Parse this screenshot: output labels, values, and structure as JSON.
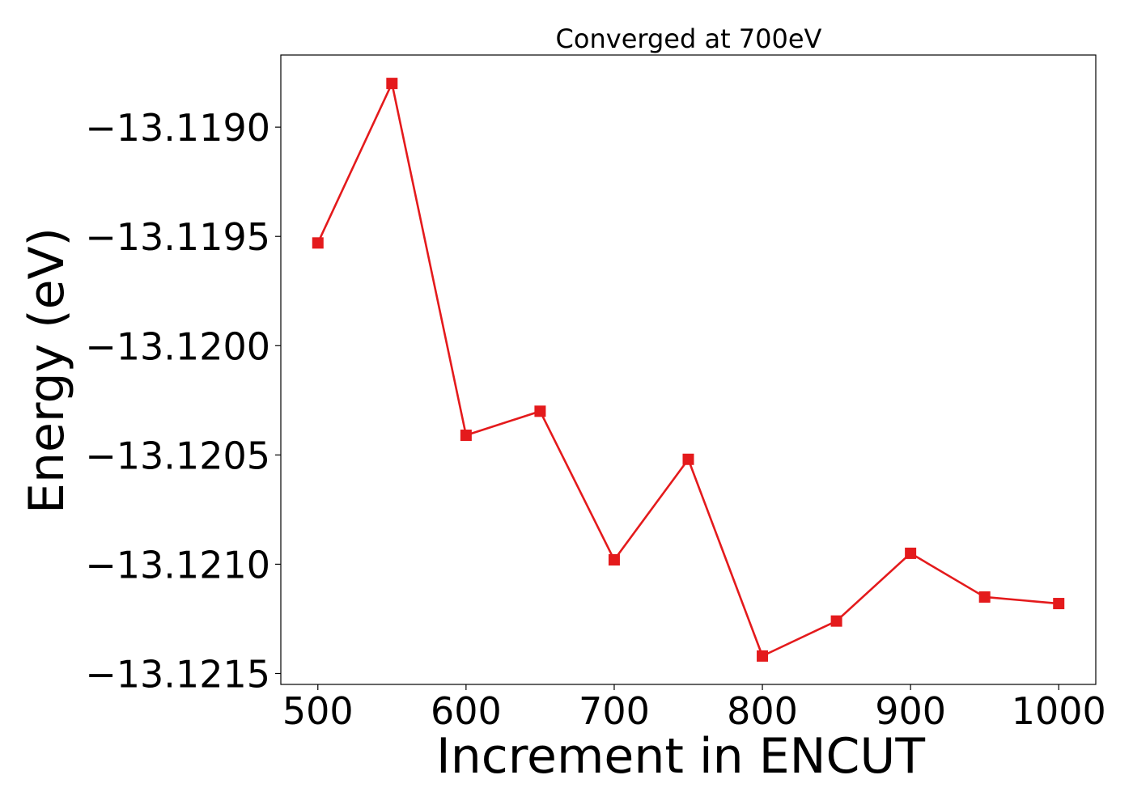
{
  "chart_data": {
    "type": "line",
    "title": "Converged at 700eV",
    "xlabel": "Increment in ENCUT",
    "ylabel": "Energy (eV)",
    "x": [
      500,
      550,
      600,
      650,
      700,
      750,
      800,
      850,
      900,
      950,
      1000
    ],
    "series": [
      {
        "values": [
          -13.11953,
          -13.1188,
          -13.12041,
          -13.1203,
          -13.12098,
          -13.12052,
          -13.12142,
          -13.12126,
          -13.12095,
          -13.12115,
          -13.12118
        ],
        "color": "#e41a1c",
        "marker": "square"
      }
    ],
    "xlim": [
      475,
      1025
    ],
    "ylim": [
      -13.12155,
      -13.11867
    ],
    "xticks": [
      500,
      600,
      700,
      800,
      900,
      1000
    ],
    "xtick_labels": [
      "500",
      "600",
      "700",
      "800",
      "900",
      "1000"
    ],
    "yticks": [
      -13.119,
      -13.1195,
      -13.12,
      -13.1205,
      -13.121,
      -13.1215
    ],
    "ytick_labels": [
      "−13.1190",
      "−13.1195",
      "−13.1200",
      "−13.1205",
      "−13.1210",
      "−13.1215"
    ],
    "grid": false,
    "legend": false
  }
}
